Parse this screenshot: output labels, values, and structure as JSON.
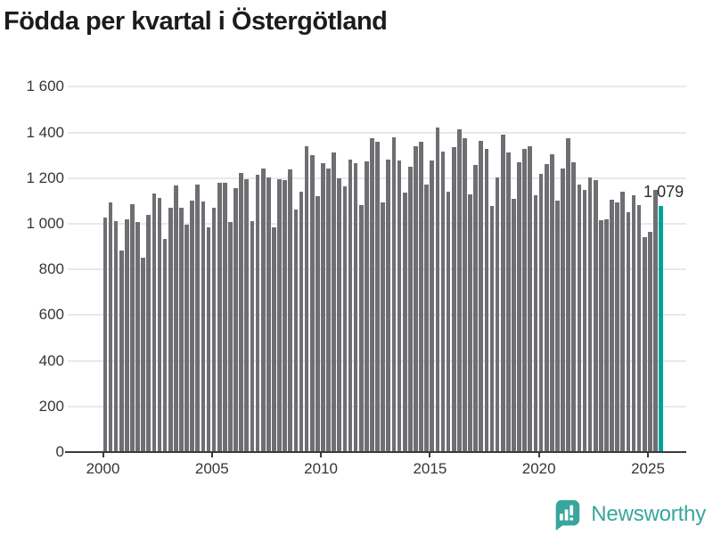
{
  "title": "Födda per kvartal i Östergötland",
  "annotation": {
    "last_value_label": "1 079"
  },
  "footer": {
    "brand": "Newsworthy",
    "logo_icon": "bar-chart-speech-bubble-icon"
  },
  "colors": {
    "background": "#ffffff",
    "bar": "#6e6e73",
    "accent": "#00a39a",
    "grid": "#e9e9e9",
    "axis": "#3b3b3b",
    "tick_text": "#363636",
    "title_text": "#1c1c1c",
    "brand_teal": "#38a69c"
  },
  "chart_data": {
    "type": "bar",
    "title": "Födda per kvartal i Östergötland",
    "xlabel": "",
    "ylabel": "",
    "x_unit": "quarter",
    "start_year": 2000,
    "start_quarter": 1,
    "end_year": 2025,
    "end_quarter": 3,
    "ylim": [
      0,
      1600
    ],
    "grid": true,
    "legend": "none",
    "highlight_last": true,
    "last_value_label": "1 079",
    "x_tick_labels": [
      "2000",
      "2005",
      "2010",
      "2015",
      "2020",
      "2025"
    ],
    "y_ticks": [
      0,
      200,
      400,
      600,
      800,
      1000,
      1200,
      1400,
      1600
    ],
    "y_tick_labels": [
      "0",
      "200",
      "400",
      "600",
      "800",
      "1 000",
      "1 200",
      "1 400",
      "1 600"
    ],
    "values": [
      1028,
      1092,
      1010,
      883,
      1021,
      1087,
      1006,
      850,
      1041,
      1133,
      1114,
      935,
      1071,
      1169,
      1071,
      997,
      1101,
      1170,
      1097,
      983,
      1071,
      1178,
      1178,
      1009,
      1158,
      1221,
      1197,
      1011,
      1215,
      1244,
      1202,
      983,
      1197,
      1193,
      1240,
      1062,
      1139,
      1339,
      1299,
      1123,
      1266,
      1244,
      1313,
      1201,
      1166,
      1283,
      1264,
      1082,
      1274,
      1374,
      1361,
      1092,
      1283,
      1377,
      1279,
      1136,
      1250,
      1338,
      1358,
      1172,
      1276,
      1420,
      1315,
      1139,
      1334,
      1415,
      1374,
      1130,
      1259,
      1365,
      1327,
      1078,
      1202,
      1390,
      1312,
      1108,
      1271,
      1329,
      1339,
      1125,
      1220,
      1262,
      1303,
      1100,
      1243,
      1376,
      1270,
      1173,
      1150,
      1205,
      1193,
      1015,
      1020,
      1105,
      1095,
      1140,
      1050,
      1125,
      1082,
      940,
      965,
      1150,
      1079
    ]
  }
}
